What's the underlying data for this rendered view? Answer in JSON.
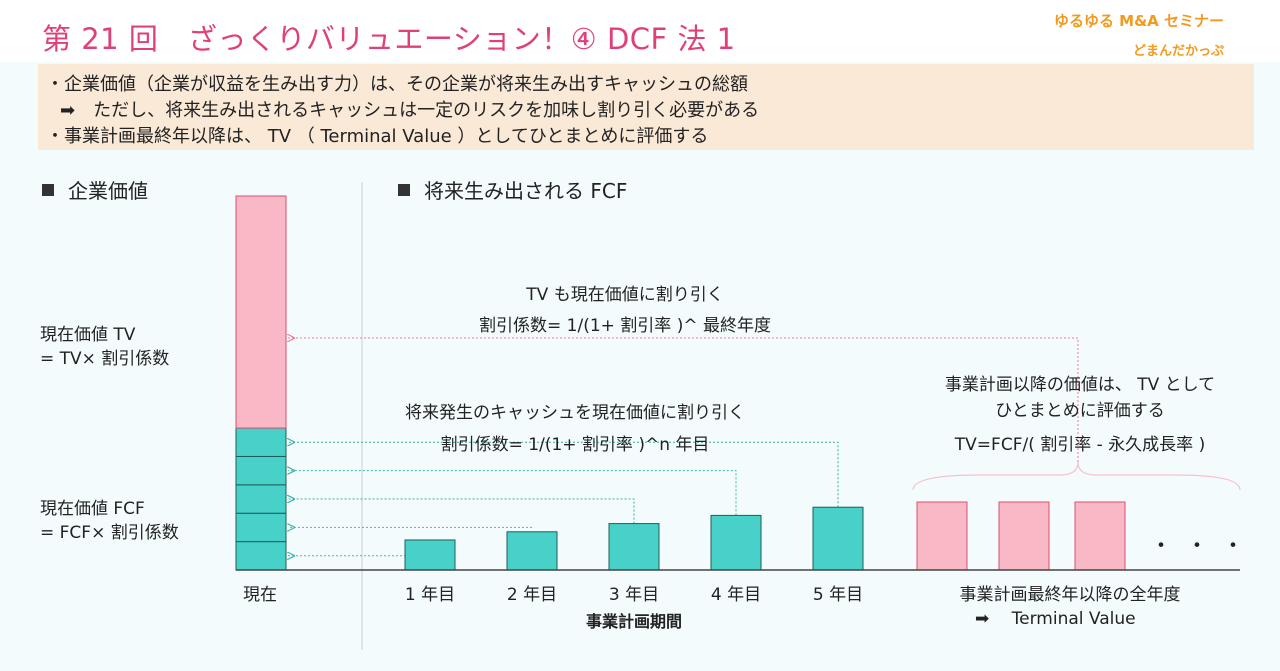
{
  "header": {
    "title": "第 21 回　ざっくりバリュエーション！④ DCF 法 1",
    "brand": "ゆるゆる M&A セミナー",
    "author": "どまんだかっぷ"
  },
  "summary": {
    "line1": "・企業価値（企業が収益を生み出す力）は、その企業が将来生み出すキャッシュの総額",
    "line2": "➡　ただし、将来生み出されるキャッシュは一定のリスクを加味し割り引く必要がある",
    "line3": "・事業計画最終年以降は、 TV （ Terminal Value ）としてひとまとめに評価する"
  },
  "left_section": {
    "title": "企業価値"
  },
  "right_section": {
    "title": "将来生み出される FCF"
  },
  "labels": {
    "tv_pv_line1": "現在価値 TV",
    "tv_pv_line2": "= TV× 割引係数",
    "fcf_pv_line1": "現在価値 FCF",
    "fcf_pv_line2": "= FCF× 割引係数",
    "tv_discount_line1": "TV も現在価値に割り引く",
    "tv_discount_line2": "割引係数= 1/(1+ 割引率 )^ 最終年度",
    "fcf_discount_line1": "将来発生のキャッシュを現在価値に割り引く",
    "fcf_discount_line2": "割引係数= 1/(1+ 割引率 )^n 年目",
    "tv_note_line1": "事業計画以降の価値は、 TV として",
    "tv_note_line2": "ひとまとめに評価する",
    "tv_formula": "TV=FCF/( 割引率 - 永久成長率 )",
    "plan_period": "事業計画期間",
    "tv_years_line1": "事業計画最終年以降の全年度",
    "tv_years_line2": "➡　 Terminal Value",
    "ellipsis": "・・・"
  },
  "chart_data": {
    "type": "bar",
    "categories": [
      "現在",
      "1 年目",
      "2 年目",
      "3 年目",
      "4 年目",
      "5 年目"
    ],
    "fcf_values": [
      1.1,
      1.4,
      1.7,
      2.0,
      2.3
    ],
    "tv_bars": 3,
    "present_value": {
      "fcf_segments": 5,
      "fcf_total": 5.2,
      "tv": 8.5
    },
    "colors": {
      "fcf": "#48d1c8",
      "tv": "#f9b8c6",
      "title": "#e0407a",
      "brand": "#f39a1e",
      "arrow_fcf": "#36b0a4",
      "arrow_tv": "#f27a99"
    }
  }
}
